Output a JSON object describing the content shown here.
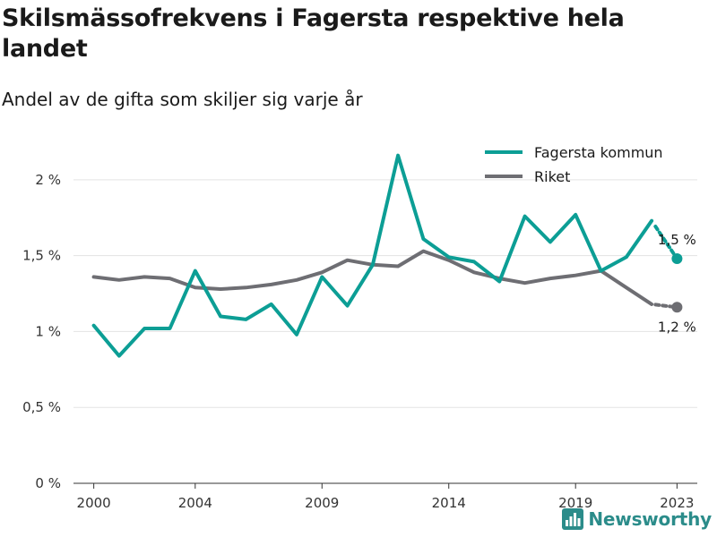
{
  "title": "Skilsmässofrekvens i Fagersta respektive hela landet",
  "subtitle": "Andel av de gifta som skiljer sig varje år",
  "brand": {
    "name": "Newsworthy",
    "icon": "newsworthy-logo-icon"
  },
  "colors": {
    "fagersta": "#0c9e95",
    "riket": "#6e6e73",
    "grid": "#e3e3e3",
    "axis": "#333333",
    "brand": "#2b8c8a"
  },
  "chart_data": {
    "type": "line",
    "x": [
      2000,
      2001,
      2002,
      2003,
      2004,
      2005,
      2006,
      2007,
      2008,
      2009,
      2010,
      2011,
      2012,
      2013,
      2014,
      2015,
      2016,
      2017,
      2018,
      2019,
      2020,
      2021,
      2022,
      2023
    ],
    "series": [
      {
        "name": "Fagersta kommun",
        "color": "#0c9e95",
        "values": [
          1.04,
          0.84,
          1.02,
          1.02,
          1.4,
          1.1,
          1.08,
          1.18,
          0.98,
          1.36,
          1.17,
          1.44,
          2.16,
          1.61,
          1.49,
          1.46,
          1.33,
          1.76,
          1.59,
          1.77,
          1.4,
          1.49,
          1.73,
          1.48
        ]
      },
      {
        "name": "Riket",
        "color": "#6e6e73",
        "values": [
          1.36,
          1.34,
          1.36,
          1.35,
          1.29,
          1.28,
          1.29,
          1.31,
          1.34,
          1.39,
          1.47,
          1.44,
          1.43,
          1.53,
          1.47,
          1.39,
          1.35,
          1.32,
          1.35,
          1.37,
          1.4,
          1.29,
          1.18,
          1.16
        ]
      }
    ],
    "end_labels": [
      "1,5 %",
      "1,2 %"
    ],
    "xticks": [
      2000,
      2004,
      2009,
      2014,
      2019,
      2023
    ],
    "xtick_labels": [
      "2000",
      "2004",
      "2009",
      "2014",
      "2019",
      "2023"
    ],
    "yticks": [
      0,
      0.5,
      1,
      1.5,
      2
    ],
    "ytick_labels": [
      "0 %",
      "0,5 %",
      "1 %",
      "1,5 %",
      "2 %"
    ],
    "ylim": [
      0,
      2.3
    ],
    "xlim": [
      1999.2,
      2023.8
    ],
    "grid": true,
    "legend_position": "top-right"
  }
}
